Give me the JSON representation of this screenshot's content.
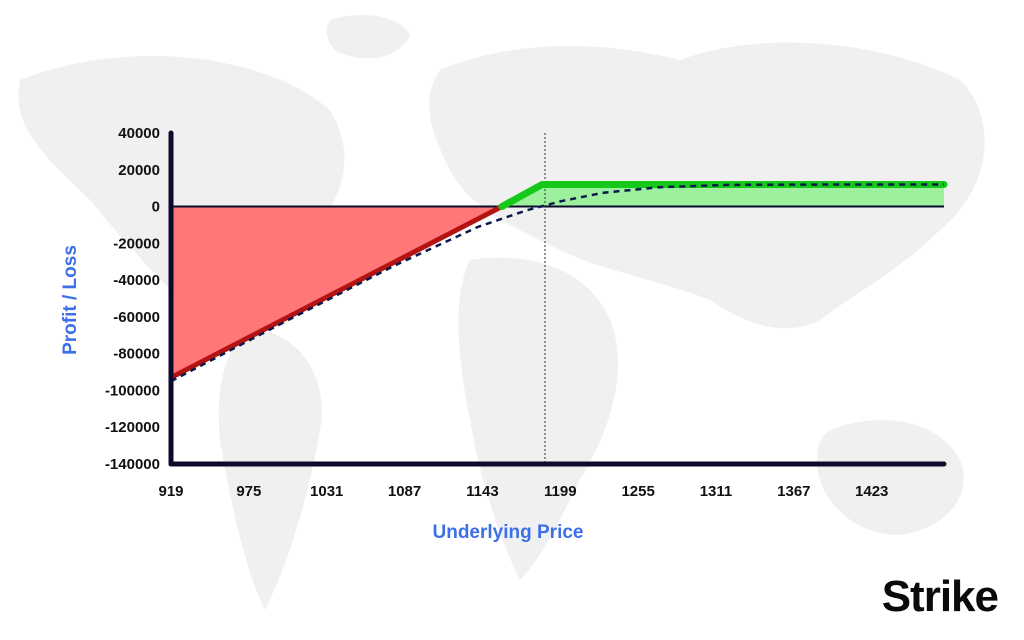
{
  "brand": {
    "logo_text": "Strike"
  },
  "colors": {
    "loss_fill": "#ff6b6b",
    "loss_line": "#b51212",
    "profit_fill": "#8ef08e",
    "profit_line": "#16c81a",
    "breakeven_curve": "#0b1a4a",
    "axis": "#0b0b2e",
    "axis_title": "#3d6fe8",
    "map": "#f0f0f0"
  },
  "chart_data": {
    "type": "line",
    "title": "",
    "xlabel": "Underlying Price",
    "ylabel": "Profit / Loss",
    "x_ticks": [
      919,
      975,
      1031,
      1087,
      1143,
      1199,
      1255,
      1311,
      1367,
      1423
    ],
    "y_ticks": [
      40000,
      20000,
      0,
      -20000,
      -40000,
      -60000,
      -80000,
      -100000,
      -120000,
      -140000
    ],
    "x_ticks_text": [
      "919",
      "975",
      "1031",
      "1087",
      "1143",
      "1199",
      "1255",
      "1311",
      "1367",
      "1423"
    ],
    "y_ticks_text": [
      "40000",
      "20000",
      "0",
      "-20000",
      "-40000",
      "-60000",
      "-80000",
      "-100000",
      "-120000",
      "-140000"
    ],
    "xlim": [
      919,
      1475
    ],
    "ylim": [
      -140000,
      40000
    ],
    "vertical_marker_x": 1188,
    "series": [
      {
        "style": "payoff-at-expiry",
        "points": [
          [
            919,
            -93000
          ],
          [
            1157,
            0
          ],
          [
            1186,
            12000
          ],
          [
            1475,
            12000
          ]
        ]
      },
      {
        "style": "dashed",
        "points": [
          [
            919,
            -95000
          ],
          [
            1000,
            -63000
          ],
          [
            1080,
            -32000
          ],
          [
            1140,
            -11000
          ],
          [
            1175,
            -2000
          ],
          [
            1200,
            3000
          ],
          [
            1230,
            7500
          ],
          [
            1270,
            10500
          ],
          [
            1320,
            11800
          ],
          [
            1400,
            12000
          ],
          [
            1475,
            12000
          ]
        ]
      }
    ]
  }
}
